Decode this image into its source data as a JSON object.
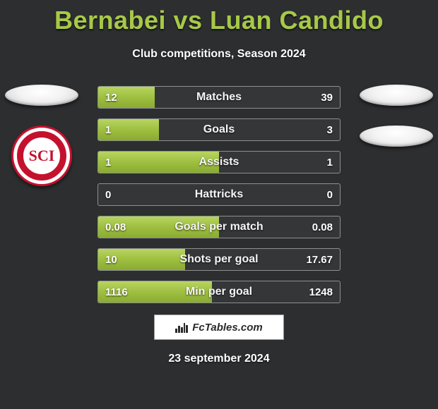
{
  "background_color": "#2d2e30",
  "title": "Bernabei vs Luan Candido",
  "title_color": "#a7c948",
  "title_fontsize": 36,
  "subtitle": "Club competitions, Season 2024",
  "subtitle_color": "#ffffff",
  "subtitle_fontsize": 16,
  "left_side": {
    "ovals": 1,
    "has_badge": true,
    "badge_text": "SCI"
  },
  "right_side": {
    "ovals": 2,
    "has_badge": false
  },
  "bar_style": {
    "border_color": "#8e8f91",
    "fill_gradient": [
      "#b8d560",
      "#9cbd3e",
      "#8aab32"
    ],
    "text_color": "#ffffff",
    "height": 32,
    "gap": 14,
    "fontsize_value": 15,
    "fontsize_label": 16
  },
  "rows": [
    {
      "label": "Matches",
      "left": "12",
      "right": "39",
      "fill_pct": 23.5
    },
    {
      "label": "Goals",
      "left": "1",
      "right": "3",
      "fill_pct": 25.0
    },
    {
      "label": "Assists",
      "left": "1",
      "right": "1",
      "fill_pct": 50.0
    },
    {
      "label": "Hattricks",
      "left": "0",
      "right": "0",
      "fill_pct": 0.0
    },
    {
      "label": "Goals per match",
      "left": "0.08",
      "right": "0.08",
      "fill_pct": 50.0
    },
    {
      "label": "Shots per goal",
      "left": "10",
      "right": "17.67",
      "fill_pct": 36.0
    },
    {
      "label": "Min per goal",
      "left": "1116",
      "right": "1248",
      "fill_pct": 47.0
    }
  ],
  "brand": {
    "text": "FcTables.com",
    "box_bg": "#ffffff",
    "box_border": "#9a9a9a"
  },
  "date": "23 september 2024"
}
